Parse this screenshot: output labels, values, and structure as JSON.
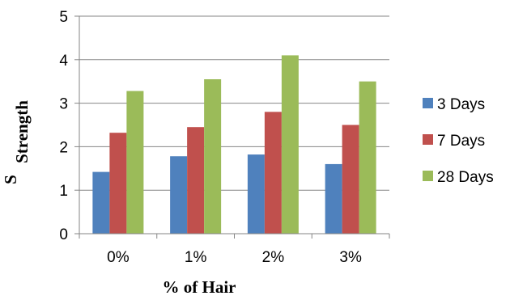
{
  "chart_data": {
    "type": "bar",
    "categories": [
      "0%",
      "1%",
      "2%",
      "3%"
    ],
    "series": [
      {
        "name": "3 Days",
        "color": "#4F81BD",
        "values": [
          1.42,
          1.78,
          1.82,
          1.6
        ]
      },
      {
        "name": "7 Days",
        "color": "#C0504D",
        "values": [
          2.32,
          2.45,
          2.8,
          2.5
        ]
      },
      {
        "name": "28 Days",
        "color": "#9BBB59",
        "values": [
          3.28,
          3.55,
          4.1,
          3.5
        ]
      }
    ],
    "xlabel": "% of Hair",
    "ylabel": "Strength",
    "ylabel_clipped_fragment": "S",
    "ylim": [
      0,
      5
    ],
    "yticks": [
      "0",
      "1",
      "2",
      "3",
      "4",
      "5"
    ],
    "grid": true,
    "legend": "right"
  }
}
